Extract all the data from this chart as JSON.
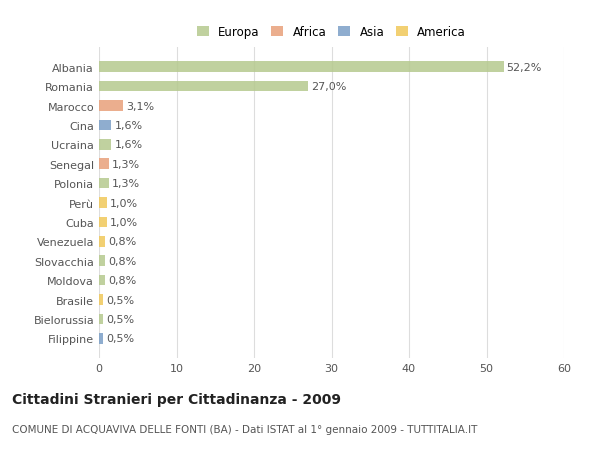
{
  "title": "Cittadini Stranieri per Cittadinanza - 2009",
  "subtitle": "COMUNE DI ACQUAVIVA DELLE FONTI (BA) - Dati ISTAT al 1° gennaio 2009 - TUTTITALIA.IT",
  "categories": [
    "Albania",
    "Romania",
    "Marocco",
    "Cina",
    "Ucraina",
    "Senegal",
    "Polonia",
    "Perù",
    "Cuba",
    "Venezuela",
    "Slovacchia",
    "Moldova",
    "Brasile",
    "Bielorussia",
    "Filippine"
  ],
  "values": [
    52.2,
    27.0,
    3.1,
    1.6,
    1.6,
    1.3,
    1.3,
    1.0,
    1.0,
    0.8,
    0.8,
    0.8,
    0.5,
    0.5,
    0.5
  ],
  "labels": [
    "52,2%",
    "27,0%",
    "3,1%",
    "1,6%",
    "1,6%",
    "1,3%",
    "1,3%",
    "1,0%",
    "1,0%",
    "0,8%",
    "0,8%",
    "0,8%",
    "0,5%",
    "0,5%",
    "0,5%"
  ],
  "colors": [
    "#b5c98e",
    "#b5c98e",
    "#e8a07a",
    "#7b9fc7",
    "#b5c98e",
    "#e8a07a",
    "#b5c98e",
    "#f0c85a",
    "#f0c85a",
    "#f0c85a",
    "#b5c98e",
    "#b5c98e",
    "#f0c85a",
    "#b5c98e",
    "#7b9fc7"
  ],
  "legend": [
    {
      "label": "Europa",
      "color": "#b5c98e"
    },
    {
      "label": "Africa",
      "color": "#e8a07a"
    },
    {
      "label": "Asia",
      "color": "#7b9fc7"
    },
    {
      "label": "America",
      "color": "#f0c85a"
    }
  ],
  "xlim": [
    0,
    60
  ],
  "xticks": [
    0,
    10,
    20,
    30,
    40,
    50,
    60
  ],
  "background_color": "#ffffff",
  "grid_color": "#dddddd",
  "bar_height": 0.55,
  "title_fontsize": 10,
  "subtitle_fontsize": 7.5,
  "tick_fontsize": 8,
  "label_fontsize": 8
}
